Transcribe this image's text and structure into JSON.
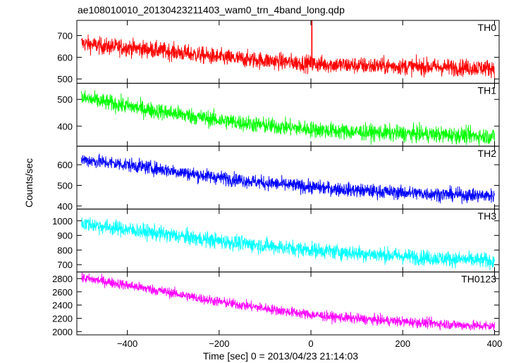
{
  "chart_data": {
    "type": "line",
    "title": "ae108010010_20130423211403_wam0_trn_4band_long.qdp",
    "xlabel": "Time [sec] 0 = 2013/04/23 21:14:03",
    "ylabel": "Counts/sec",
    "xlim": [
      -510,
      410
    ],
    "x_ticks": [
      -400,
      -200,
      0,
      200,
      400
    ],
    "x_tick_labels": [
      "−400",
      "−200",
      "0",
      "200",
      "400"
    ],
    "grid": false,
    "panels": [
      {
        "name": "TH0",
        "color": "#ff0000",
        "ylim": [
          480,
          770
        ],
        "y_ticks": [
          500,
          600,
          700
        ],
        "x": [
          -500,
          -450,
          -400,
          -350,
          -300,
          -250,
          -200,
          -150,
          -100,
          -50,
          0,
          50,
          100,
          150,
          200,
          250,
          300,
          350,
          400
        ],
        "y": [
          665,
          650,
          645,
          635,
          625,
          612,
          600,
          592,
          585,
          578,
          570,
          566,
          562,
          560,
          558,
          556,
          554,
          552,
          550
        ],
        "noise": 28,
        "spikes": [
          {
            "x": 2,
            "y": 770
          }
        ]
      },
      {
        "name": "TH1",
        "color": "#00ff00",
        "ylim": [
          325,
          560
        ],
        "y_ticks": [
          400,
          500
        ],
        "x": [
          -500,
          -450,
          -400,
          -350,
          -300,
          -250,
          -200,
          -150,
          -100,
          -50,
          0,
          50,
          100,
          150,
          200,
          250,
          300,
          350,
          400
        ],
        "y": [
          505,
          490,
          475,
          460,
          448,
          435,
          422,
          412,
          402,
          395,
          388,
          382,
          378,
          375,
          372,
          370,
          367,
          364,
          362
        ],
        "noise": 22,
        "spikes": []
      },
      {
        "name": "TH2",
        "color": "#0000ff",
        "ylim": [
          385,
          690
        ],
        "y_ticks": [
          400,
          500,
          600
        ],
        "x": [
          -500,
          -450,
          -400,
          -350,
          -300,
          -250,
          -200,
          -150,
          -100,
          -50,
          0,
          50,
          100,
          150,
          200,
          250,
          300,
          350,
          400
        ],
        "y": [
          625,
          612,
          600,
          585,
          570,
          552,
          538,
          525,
          512,
          502,
          492,
          484,
          476,
          470,
          465,
          460,
          456,
          452,
          450
        ],
        "noise": 24,
        "spikes": []
      },
      {
        "name": "TH3",
        "color": "#00ffff",
        "ylim": [
          650,
          1080
        ],
        "y_ticks": [
          700,
          800,
          900,
          1000
        ],
        "x": [
          -500,
          -450,
          -400,
          -350,
          -300,
          -250,
          -200,
          -150,
          -100,
          -50,
          0,
          50,
          100,
          150,
          200,
          250,
          300,
          350,
          400
        ],
        "y": [
          985,
          960,
          940,
          920,
          900,
          880,
          862,
          845,
          830,
          815,
          802,
          790,
          778,
          768,
          758,
          748,
          740,
          732,
          725
        ],
        "noise": 38,
        "spikes": []
      },
      {
        "name": "TH0123",
        "color": "#ff00ff",
        "ylim": [
          1950,
          2900
        ],
        "y_ticks": [
          2000,
          2200,
          2400,
          2600,
          2800
        ],
        "x": [
          -500,
          -450,
          -400,
          -350,
          -300,
          -250,
          -200,
          -150,
          -100,
          -50,
          0,
          50,
          100,
          150,
          200,
          250,
          300,
          350,
          400
        ],
        "y": [
          2810,
          2760,
          2700,
          2640,
          2580,
          2510,
          2450,
          2400,
          2350,
          2300,
          2255,
          2220,
          2195,
          2170,
          2150,
          2130,
          2110,
          2090,
          2080
        ],
        "noise": 55,
        "spikes": []
      }
    ]
  }
}
